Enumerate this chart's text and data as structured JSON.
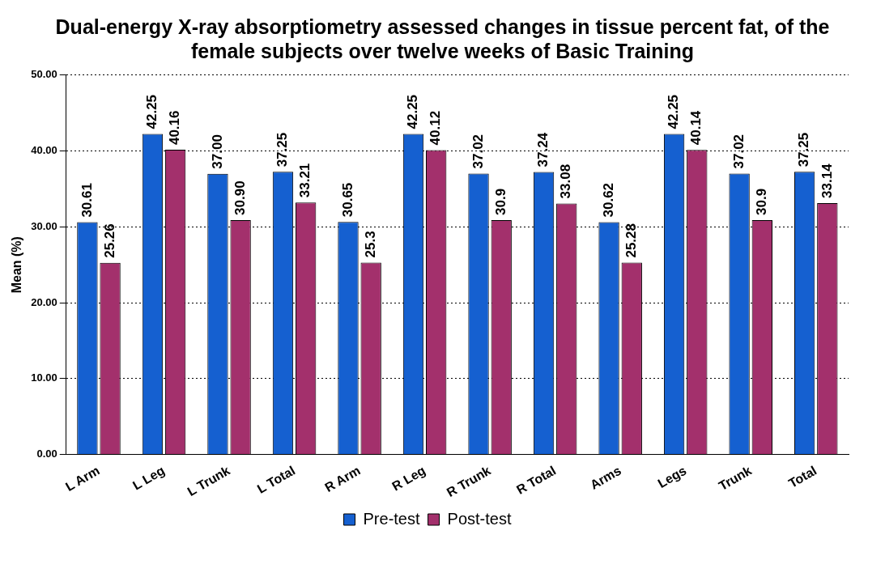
{
  "chart_data": {
    "type": "bar",
    "title": "Dual-energy X-ray absorptiometry assessed changes in tissue percent fat, of the female subjects over twelve weeks of Basic Training",
    "ylabel": "Mean (%)",
    "categories": [
      "L Arm",
      "L Leg",
      "L Trunk",
      "L Total",
      "R Arm",
      "R Leg",
      "R Trunk",
      "R Total",
      "Arms",
      "Legs",
      "Trunk",
      "Total"
    ],
    "series": [
      {
        "name": "Pre-test",
        "color": "#1560d0",
        "values": [
          30.61,
          42.25,
          37.0,
          37.25,
          30.65,
          42.25,
          37.02,
          37.24,
          30.62,
          42.25,
          37.02,
          37.25
        ],
        "value_labels": [
          "30.61",
          "42.25",
          "37.00",
          "37.25",
          "30.65",
          "42.25",
          "37.02",
          "37.24",
          "30.62",
          "42.25",
          "37.02",
          "37.25"
        ]
      },
      {
        "name": "Post-test",
        "color": "#a3306c",
        "values": [
          25.26,
          40.16,
          30.9,
          33.21,
          25.3,
          40.12,
          30.9,
          33.08,
          25.28,
          40.14,
          30.9,
          33.14
        ],
        "value_labels": [
          "25.26",
          "40.16",
          "30.90",
          "33.21",
          "25.3",
          "40.12",
          "30.9",
          "33.08",
          "25.28",
          "40.14",
          "30.9",
          "33.14"
        ]
      }
    ],
    "ylim": [
      0,
      50
    ],
    "yticks": [
      {
        "value": 0,
        "label": "0.00"
      },
      {
        "value": 10,
        "label": "10.00"
      },
      {
        "value": 20,
        "label": "20.00"
      },
      {
        "value": 30,
        "label": "30.00"
      },
      {
        "value": 40,
        "label": "40.00"
      },
      {
        "value": 50,
        "label": "50.00"
      }
    ],
    "grid": "y",
    "legend": "bottom"
  }
}
